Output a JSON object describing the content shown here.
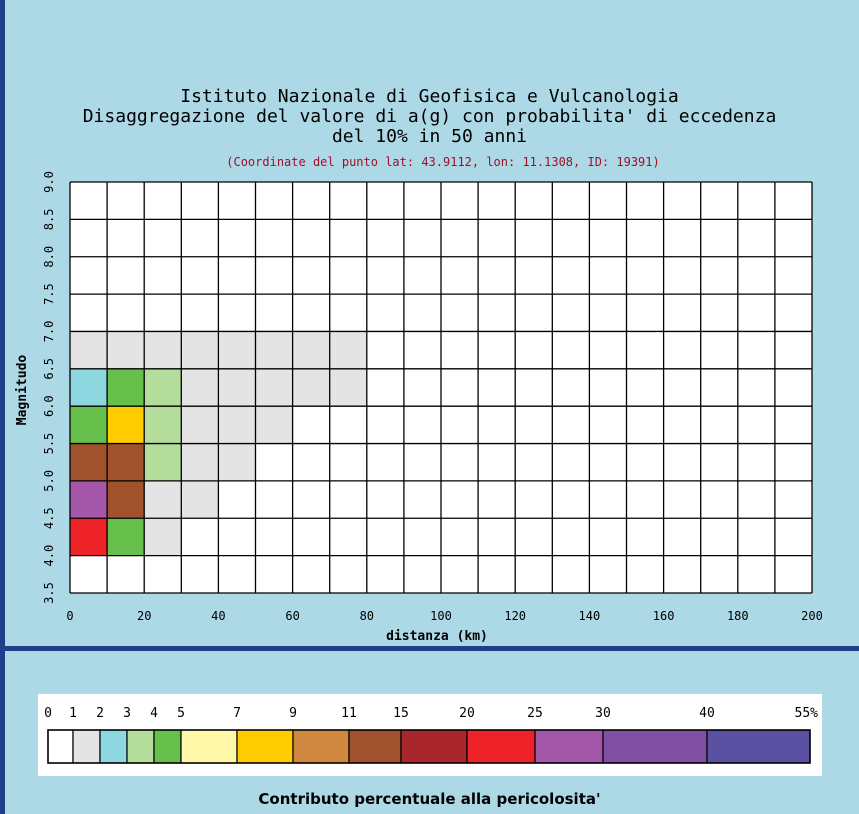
{
  "titles": {
    "line1": "Istituto Nazionale di Geofisica e Vulcanologia",
    "line2": "Disaggregazione del valore di a(g) con probabilita' di eccedenza",
    "line3": "del 10% in 50 anni",
    "coords": "(Coordinate del punto lat: 43.9112, lon: 11.1308, ID: 19391)"
  },
  "chart_data": {
    "type": "heatmap",
    "xlabel": "distanza (km)",
    "ylabel": "Magnitudo",
    "xlim": [
      0,
      200
    ],
    "ylim": [
      3.5,
      9.0
    ],
    "x_ticks": [
      0,
      20,
      40,
      60,
      80,
      100,
      120,
      140,
      160,
      180,
      200
    ],
    "y_ticks": [
      "3.5",
      "4.0",
      "4.5",
      "5.0",
      "5.5",
      "6.0",
      "6.5",
      "7.0",
      "7.5",
      "8.0",
      "8.5",
      "9.0"
    ],
    "x_bin_width_km": 10,
    "y_bin_width_mag": 0.5,
    "cells": [
      {
        "d": 0,
        "m": 4.0,
        "color": "#ee2229"
      },
      {
        "d": 10,
        "m": 4.0,
        "color": "#67c04c"
      },
      {
        "d": 20,
        "m": 4.0,
        "color": "#e4e4e4"
      },
      {
        "d": 0,
        "m": 4.5,
        "color": "#a457a8"
      },
      {
        "d": 10,
        "m": 4.5,
        "color": "#a0522d"
      },
      {
        "d": 20,
        "m": 4.5,
        "color": "#e4e4e4"
      },
      {
        "d": 30,
        "m": 4.5,
        "color": "#e4e4e4"
      },
      {
        "d": 0,
        "m": 5.0,
        "color": "#a0522d"
      },
      {
        "d": 10,
        "m": 5.0,
        "color": "#a0522d"
      },
      {
        "d": 20,
        "m": 5.0,
        "color": "#b4dc9a"
      },
      {
        "d": 30,
        "m": 5.0,
        "color": "#e4e4e4"
      },
      {
        "d": 40,
        "m": 5.0,
        "color": "#e4e4e4"
      },
      {
        "d": 0,
        "m": 5.5,
        "color": "#67c04c"
      },
      {
        "d": 10,
        "m": 5.5,
        "color": "#ffcc00"
      },
      {
        "d": 20,
        "m": 5.5,
        "color": "#b4dc9a"
      },
      {
        "d": 30,
        "m": 5.5,
        "color": "#e4e4e4"
      },
      {
        "d": 40,
        "m": 5.5,
        "color": "#e4e4e4"
      },
      {
        "d": 50,
        "m": 5.5,
        "color": "#e4e4e4"
      },
      {
        "d": 0,
        "m": 6.0,
        "color": "#8cd7e0"
      },
      {
        "d": 10,
        "m": 6.0,
        "color": "#67c04c"
      },
      {
        "d": 20,
        "m": 6.0,
        "color": "#b4dc9a"
      },
      {
        "d": 30,
        "m": 6.0,
        "color": "#e4e4e4"
      },
      {
        "d": 40,
        "m": 6.0,
        "color": "#e4e4e4"
      },
      {
        "d": 50,
        "m": 6.0,
        "color": "#e4e4e4"
      },
      {
        "d": 60,
        "m": 6.0,
        "color": "#e4e4e4"
      },
      {
        "d": 70,
        "m": 6.0,
        "color": "#e4e4e4"
      },
      {
        "d": 0,
        "m": 6.5,
        "color": "#e4e4e4"
      },
      {
        "d": 10,
        "m": 6.5,
        "color": "#e4e4e4"
      },
      {
        "d": 20,
        "m": 6.5,
        "color": "#e4e4e4"
      },
      {
        "d": 30,
        "m": 6.5,
        "color": "#e4e4e4"
      },
      {
        "d": 40,
        "m": 6.5,
        "color": "#e4e4e4"
      },
      {
        "d": 50,
        "m": 6.5,
        "color": "#e4e4e4"
      },
      {
        "d": 60,
        "m": 6.5,
        "color": "#e4e4e4"
      },
      {
        "d": 70,
        "m": 6.5,
        "color": "#e4e4e4"
      }
    ]
  },
  "legend": {
    "title": "Contributo percentuale alla pericolosita'",
    "labels": [
      "0",
      "1",
      "2",
      "3",
      "4",
      "5",
      "7",
      "9",
      "11",
      "15",
      "20",
      "25",
      "30",
      "40",
      "55%"
    ],
    "colors": [
      "#ffffff",
      "#e4e4e4",
      "#8cd7e0",
      "#b4dc9a",
      "#67c04c",
      "#fff8a8",
      "#ffcc00",
      "#d08840",
      "#a0522d",
      "#a8262c",
      "#ee2229",
      "#a457a8",
      "#7e4fa3",
      "#5a51a3",
      "#252b78"
    ]
  }
}
